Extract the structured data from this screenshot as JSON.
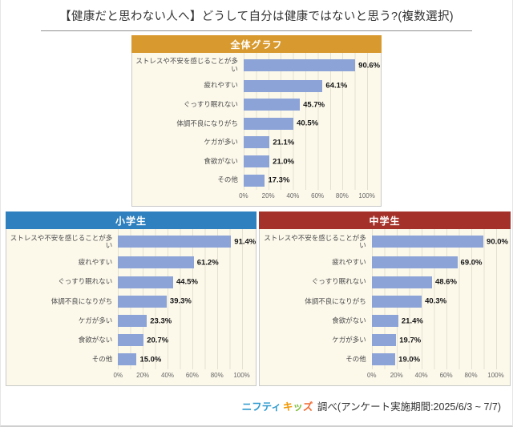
{
  "page": {
    "title": "【健康だと思わない人へ】どうして自分は健康ではないと思う?(複数選択)"
  },
  "colors": {
    "overall_header": "#d8992e",
    "elementary_header": "#2e80bf",
    "junior_header": "#a5322a",
    "bar_fill": "#8ca3d8",
    "panel_bg": "#fcf9eb",
    "nifty_blue": "#2f9bce",
    "kids_orange": "#f29600",
    "kids_green": "#7dbe3a",
    "kids_red_orange": "#ef6c33"
  },
  "chart_data": [
    {
      "type": "bar",
      "orientation": "horizontal",
      "title": "全体グラフ",
      "categories": [
        "ストレスや不安を感じることが多い",
        "疲れやすい",
        "ぐっすり眠れない",
        "体調不良になりがち",
        "ケガが多い",
        "食欲がない",
        "その他"
      ],
      "values": [
        90.6,
        64.1,
        45.7,
        40.5,
        21.1,
        21.0,
        17.3
      ],
      "value_labels": [
        "90.6%",
        "64.1%",
        "45.7%",
        "40.5%",
        "21.1%",
        "21.0%",
        "17.3%"
      ],
      "ticks": [
        "0%",
        "20%",
        "40%",
        "60%",
        "80%",
        "100%"
      ],
      "xlim": [
        0,
        100
      ],
      "grid": "vertical-10pct",
      "legend": "none"
    },
    {
      "type": "bar",
      "orientation": "horizontal",
      "title": "小学生",
      "categories": [
        "ストレスや不安を感じることが多い",
        "疲れやすい",
        "ぐっすり眠れない",
        "体調不良になりがち",
        "ケガが多い",
        "食欲がない",
        "その他"
      ],
      "values": [
        91.4,
        61.2,
        44.5,
        39.3,
        23.3,
        20.7,
        15.0
      ],
      "value_labels": [
        "91.4%",
        "61.2%",
        "44.5%",
        "39.3%",
        "23.3%",
        "20.7%",
        "15.0%"
      ],
      "ticks": [
        "0%",
        "20%",
        "40%",
        "60%",
        "80%",
        "100%"
      ],
      "xlim": [
        0,
        100
      ],
      "grid": "vertical-10pct",
      "legend": "none"
    },
    {
      "type": "bar",
      "orientation": "horizontal",
      "title": "中学生",
      "categories": [
        "ストレスや不安を感じることが多い",
        "疲れやすい",
        "ぐっすり眠れない",
        "体調不良になりがち",
        "食欲がない",
        "ケガが多い",
        "その他"
      ],
      "values": [
        90.0,
        69.0,
        48.6,
        40.3,
        21.4,
        19.7,
        19.0
      ],
      "value_labels": [
        "90.0%",
        "69.0%",
        "48.6%",
        "40.3%",
        "21.4%",
        "19.7%",
        "19.0%"
      ],
      "ticks": [
        "0%",
        "20%",
        "40%",
        "60%",
        "80%",
        "100%"
      ],
      "xlim": [
        0,
        100
      ],
      "grid": "vertical-10pct",
      "legend": "none"
    }
  ],
  "footer": {
    "logo_nifty": "ニフティ",
    "kids_chars": [
      "キ",
      "ッ",
      "ズ"
    ],
    "credit": " 調べ(アンケート実施期間:2025/6/3 ~ 7/7)"
  }
}
